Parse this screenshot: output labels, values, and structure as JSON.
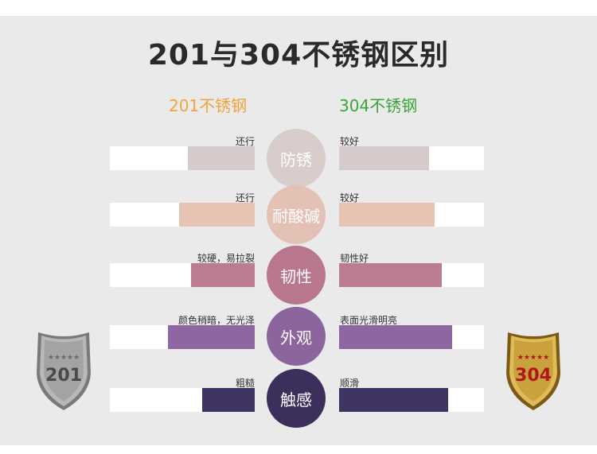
{
  "title": "201与304不锈钢区别",
  "left_heading": "201不锈钢",
  "right_heading": "304不锈钢",
  "rows": [
    {
      "category": "防锈",
      "left_label": "还行",
      "right_label": "较好",
      "left_value": 0.46,
      "right_value": 0.62,
      "color": "#d8cdcb",
      "bar_color": "#d6cbca"
    },
    {
      "category": "耐酸碱",
      "left_label": "还行",
      "right_label": "较好",
      "left_value": 0.52,
      "right_value": 0.66,
      "color": "#e3c2b5",
      "bar_color": "#e6c3b3"
    },
    {
      "category": "韧性",
      "left_label": "较硬，易拉裂",
      "right_label": "韧性好",
      "left_value": 0.44,
      "right_value": 0.71,
      "color": "#b9778f",
      "bar_color": "#b97c91"
    },
    {
      "category": "外观",
      "left_label": "颜色稍暗，无光泽",
      "right_label": "表面光滑明亮",
      "left_value": 0.6,
      "right_value": 0.78,
      "color": "#8c659e",
      "bar_color": "#8e66a1"
    },
    {
      "category": "触感",
      "left_label": "粗糙",
      "right_label": "顺滑",
      "left_value": 0.36,
      "right_value": 0.75,
      "color": "#3d2f5c",
      "bar_color": "#3f3462"
    }
  ],
  "shields": {
    "left": {
      "text": "201",
      "color": "#9c9c9c",
      "text_color": "#4a4a4a"
    },
    "right": {
      "text": "304",
      "color": "#c9a23d",
      "text_color": "#b01818"
    }
  }
}
